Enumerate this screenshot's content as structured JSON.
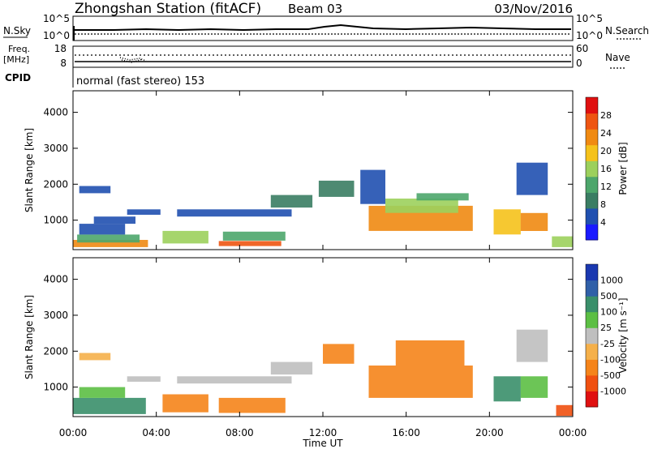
{
  "header": {
    "station": "Zhongshan Station (fitACF)",
    "beam": "Beam 03",
    "date": "03/Nov/2016"
  },
  "nsky_panel": {
    "left_label": "N.Sky",
    "right_label": "N.Search",
    "left_ticks": [
      "10^5",
      "10^0"
    ],
    "right_ticks": [
      "10^5",
      "10^0"
    ]
  },
  "freq_panel": {
    "left_label_line1": "Freq.",
    "left_label_line2": "[MHz]",
    "right_label": "Nave",
    "left_ticks": [
      "18",
      "8"
    ],
    "right_ticks": [
      "60",
      "0"
    ]
  },
  "cpid_panel": {
    "label": "CPID",
    "text": "normal (fast stereo) 153"
  },
  "colors": {
    "power": [
      "#1a1aff",
      "#2050b0",
      "#3a7d63",
      "#4da66b",
      "#9cd05c",
      "#f5c21b",
      "#f08a12",
      "#ee5512",
      "#e01010"
    ],
    "velocity": [
      "#e01010",
      "#f05010",
      "#f5841a",
      "#f5b04a",
      "#bfbfbf",
      "#5cbf44",
      "#3a8f6a",
      "#3060a8",
      "#1a38b0"
    ]
  },
  "chart_data": [
    {
      "type": "heatmap",
      "quantity": "Power",
      "ylabel": "Slant Range [km]",
      "xlabel": "",
      "x_ticks": [
        "00:00",
        "04:00",
        "08:00",
        "12:00",
        "16:00",
        "20:00",
        "00:00"
      ],
      "x_hours": [
        0,
        4,
        8,
        12,
        16,
        20,
        24
      ],
      "ylim": [
        180,
        4600
      ],
      "y_ticks": [
        1000,
        2000,
        3000,
        4000
      ],
      "colorbar": {
        "label": "Power [dB]",
        "range": [
          0,
          32
        ],
        "ticks": [
          "4",
          "8",
          "12",
          "16",
          "20",
          "24",
          "28"
        ]
      },
      "regions": [
        {
          "t": [
            0.0,
            3.6
          ],
          "r": [
            250,
            450
          ],
          "level": 6
        },
        {
          "t": [
            0.2,
            3.2
          ],
          "r": [
            380,
            600
          ],
          "level": 3
        },
        {
          "t": [
            0.3,
            2.5
          ],
          "r": [
            600,
            900
          ],
          "level": 1
        },
        {
          "t": [
            1.0,
            3.0
          ],
          "r": [
            900,
            1100
          ],
          "level": 1
        },
        {
          "t": [
            2.6,
            4.2
          ],
          "r": [
            1150,
            1300
          ],
          "level": 1
        },
        {
          "t": [
            0.3,
            1.8
          ],
          "r": [
            1750,
            1950
          ],
          "level": 1
        },
        {
          "t": [
            4.3,
            6.5
          ],
          "r": [
            350,
            700
          ],
          "level": 4
        },
        {
          "t": [
            7.0,
            10.0
          ],
          "r": [
            280,
            420
          ],
          "level": 7
        },
        {
          "t": [
            7.2,
            10.2
          ],
          "r": [
            430,
            680
          ],
          "level": 3
        },
        {
          "t": [
            5.0,
            10.5
          ],
          "r": [
            1100,
            1300
          ],
          "level": 1
        },
        {
          "t": [
            9.5,
            11.5
          ],
          "r": [
            1350,
            1700
          ],
          "level": 2
        },
        {
          "t": [
            11.8,
            13.5
          ],
          "r": [
            1650,
            2100
          ],
          "level": 2
        },
        {
          "t": [
            14.2,
            19.2
          ],
          "r": [
            700,
            1400
          ],
          "level": 6
        },
        {
          "t": [
            15.0,
            18.5
          ],
          "r": [
            1200,
            1600
          ],
          "level": 4
        },
        {
          "t": [
            16.5,
            19.0
          ],
          "r": [
            1550,
            1750
          ],
          "level": 3
        },
        {
          "t": [
            13.8,
            15.0
          ],
          "r": [
            1450,
            2400
          ],
          "level": 1
        },
        {
          "t": [
            20.2,
            21.5
          ],
          "r": [
            600,
            1300
          ],
          "level": 5
        },
        {
          "t": [
            21.5,
            22.8
          ],
          "r": [
            700,
            1200
          ],
          "level": 6
        },
        {
          "t": [
            21.3,
            22.8
          ],
          "r": [
            1700,
            2600
          ],
          "level": 1
        },
        {
          "t": [
            23.0,
            24.0
          ],
          "r": [
            250,
            550
          ],
          "level": 4
        }
      ]
    },
    {
      "type": "heatmap",
      "quantity": "Velocity",
      "ylabel": "Slant Range [km]",
      "xlabel": "Time UT",
      "x_ticks": [
        "00:00",
        "04:00",
        "08:00",
        "12:00",
        "16:00",
        "20:00",
        "00:00"
      ],
      "x_hours": [
        0,
        4,
        8,
        12,
        16,
        20,
        24
      ],
      "ylim": [
        180,
        4600
      ],
      "y_ticks": [
        1000,
        2000,
        3000,
        4000
      ],
      "colorbar": {
        "label": "Velocity [m s⁻¹]",
        "ticks": [
          "1000",
          "500",
          "100",
          "25",
          "-25",
          "-100",
          "-500",
          "-1000"
        ]
      },
      "regions": [
        {
          "t": [
            0.0,
            3.5
          ],
          "r": [
            250,
            700
          ],
          "level": 6
        },
        {
          "t": [
            0.3,
            2.5
          ],
          "r": [
            700,
            1000
          ],
          "level": 5
        },
        {
          "t": [
            2.6,
            4.2
          ],
          "r": [
            1150,
            1300
          ],
          "level": 4
        },
        {
          "t": [
            0.3,
            1.8
          ],
          "r": [
            1750,
            1950
          ],
          "level": 3
        },
        {
          "t": [
            4.3,
            6.5
          ],
          "r": [
            300,
            800
          ],
          "level": 2
        },
        {
          "t": [
            7.0,
            10.2
          ],
          "r": [
            280,
            700
          ],
          "level": 2
        },
        {
          "t": [
            5.0,
            10.5
          ],
          "r": [
            1100,
            1300
          ],
          "level": 4
        },
        {
          "t": [
            9.5,
            11.5
          ],
          "r": [
            1350,
            1700
          ],
          "level": 4
        },
        {
          "t": [
            12.0,
            13.5
          ],
          "r": [
            1650,
            2200
          ],
          "level": 2
        },
        {
          "t": [
            14.2,
            19.2
          ],
          "r": [
            700,
            1600
          ],
          "level": 2
        },
        {
          "t": [
            15.5,
            18.8
          ],
          "r": [
            1600,
            2300
          ],
          "level": 2
        },
        {
          "t": [
            20.2,
            21.5
          ],
          "r": [
            600,
            1300
          ],
          "level": 6
        },
        {
          "t": [
            21.5,
            22.8
          ],
          "r": [
            700,
            1300
          ],
          "level": 5
        },
        {
          "t": [
            21.3,
            22.8
          ],
          "r": [
            1700,
            2600
          ],
          "level": 4
        },
        {
          "t": [
            23.2,
            24.0
          ],
          "r": [
            200,
            500
          ],
          "level": 1
        }
      ]
    }
  ]
}
